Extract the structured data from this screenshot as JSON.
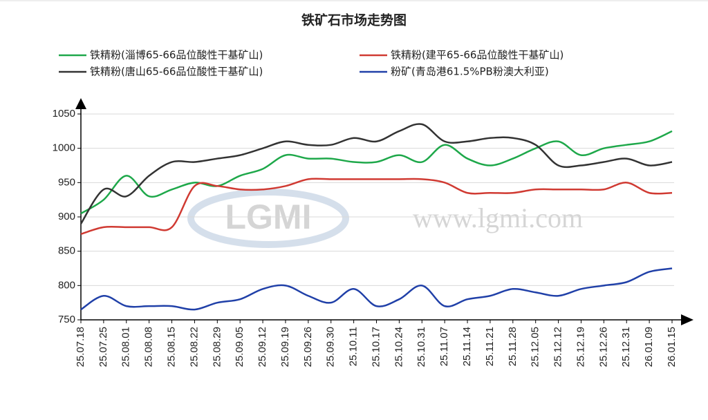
{
  "chart_data": {
    "type": "line",
    "title": "铁矿石市场走势图",
    "watermark_logo": "LGMI",
    "watermark_url": "www.lgmi.com",
    "categories": [
      "25.07.18",
      "25.07.25",
      "25.08.01",
      "25.08.08",
      "25.08.15",
      "25.08.22",
      "25.08.29",
      "25.09.05",
      "25.09.12",
      "25.09.19",
      "25.09.26",
      "25.09.30",
      "25.10.11",
      "25.10.17",
      "25.10.24",
      "25.10.31",
      "25.11.07",
      "25.11.14",
      "25.11.21",
      "25.11.28",
      "25.12.05",
      "25.12.12",
      "25.12.19",
      "25.12.26",
      "25.12.31",
      "26.01.09",
      "26.01.15"
    ],
    "series": [
      {
        "name": "铁精粉(淄博65-66品位酸性干基矿山)",
        "color": "#1ea84a",
        "values": [
          905,
          925,
          960,
          930,
          940,
          950,
          945,
          960,
          970,
          990,
          985,
          985,
          980,
          980,
          990,
          980,
          1005,
          985,
          975,
          985,
          1000,
          1010,
          990,
          1000,
          1005,
          1010,
          1025
        ]
      },
      {
        "name": "铁精粉(建平65-66品位酸性干基矿山)",
        "color": "#d03a32",
        "values": [
          875,
          885,
          885,
          885,
          885,
          945,
          945,
          940,
          940,
          945,
          955,
          955,
          955,
          955,
          955,
          955,
          950,
          935,
          935,
          935,
          940,
          940,
          940,
          940,
          950,
          935,
          935
        ]
      },
      {
        "name": "铁精粉(唐山65-66品位酸性干基矿山)",
        "color": "#333333",
        "values": [
          890,
          940,
          930,
          960,
          980,
          980,
          985,
          990,
          1000,
          1010,
          1005,
          1005,
          1015,
          1010,
          1025,
          1035,
          1010,
          1010,
          1015,
          1015,
          1005,
          975,
          975,
          980,
          985,
          975,
          980
        ]
      },
      {
        "name": "粉矿(青岛港61.5%PB粉澳大利亚)",
        "color": "#2040a8",
        "values": [
          765,
          785,
          770,
          770,
          770,
          765,
          775,
          780,
          795,
          800,
          785,
          775,
          795,
          770,
          780,
          800,
          770,
          780,
          785,
          795,
          790,
          785,
          795,
          800,
          805,
          820,
          825
        ]
      }
    ],
    "ylim": [
      750,
      1050
    ],
    "yticks": [
      750,
      800,
      850,
      900,
      950,
      1000,
      1050
    ],
    "grid": true
  }
}
